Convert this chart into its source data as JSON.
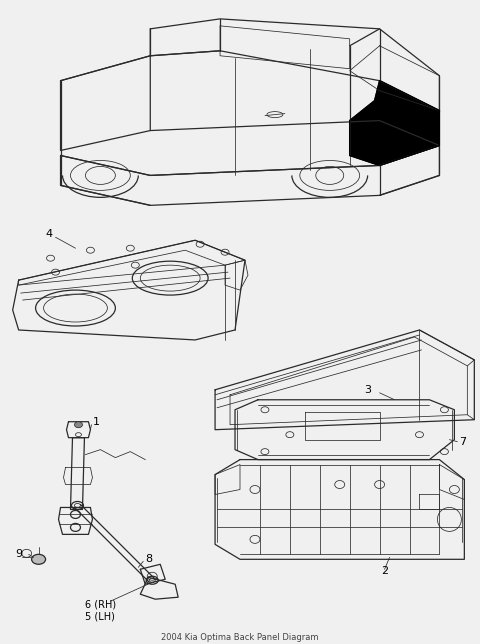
{
  "title": "2004 Kia Optima Back Panel Diagram",
  "bg_color": "#f0f0f0",
  "line_color": "#2a2a2a",
  "label_color": "#000000",
  "fig_width": 4.8,
  "fig_height": 6.44,
  "dpi": 100
}
